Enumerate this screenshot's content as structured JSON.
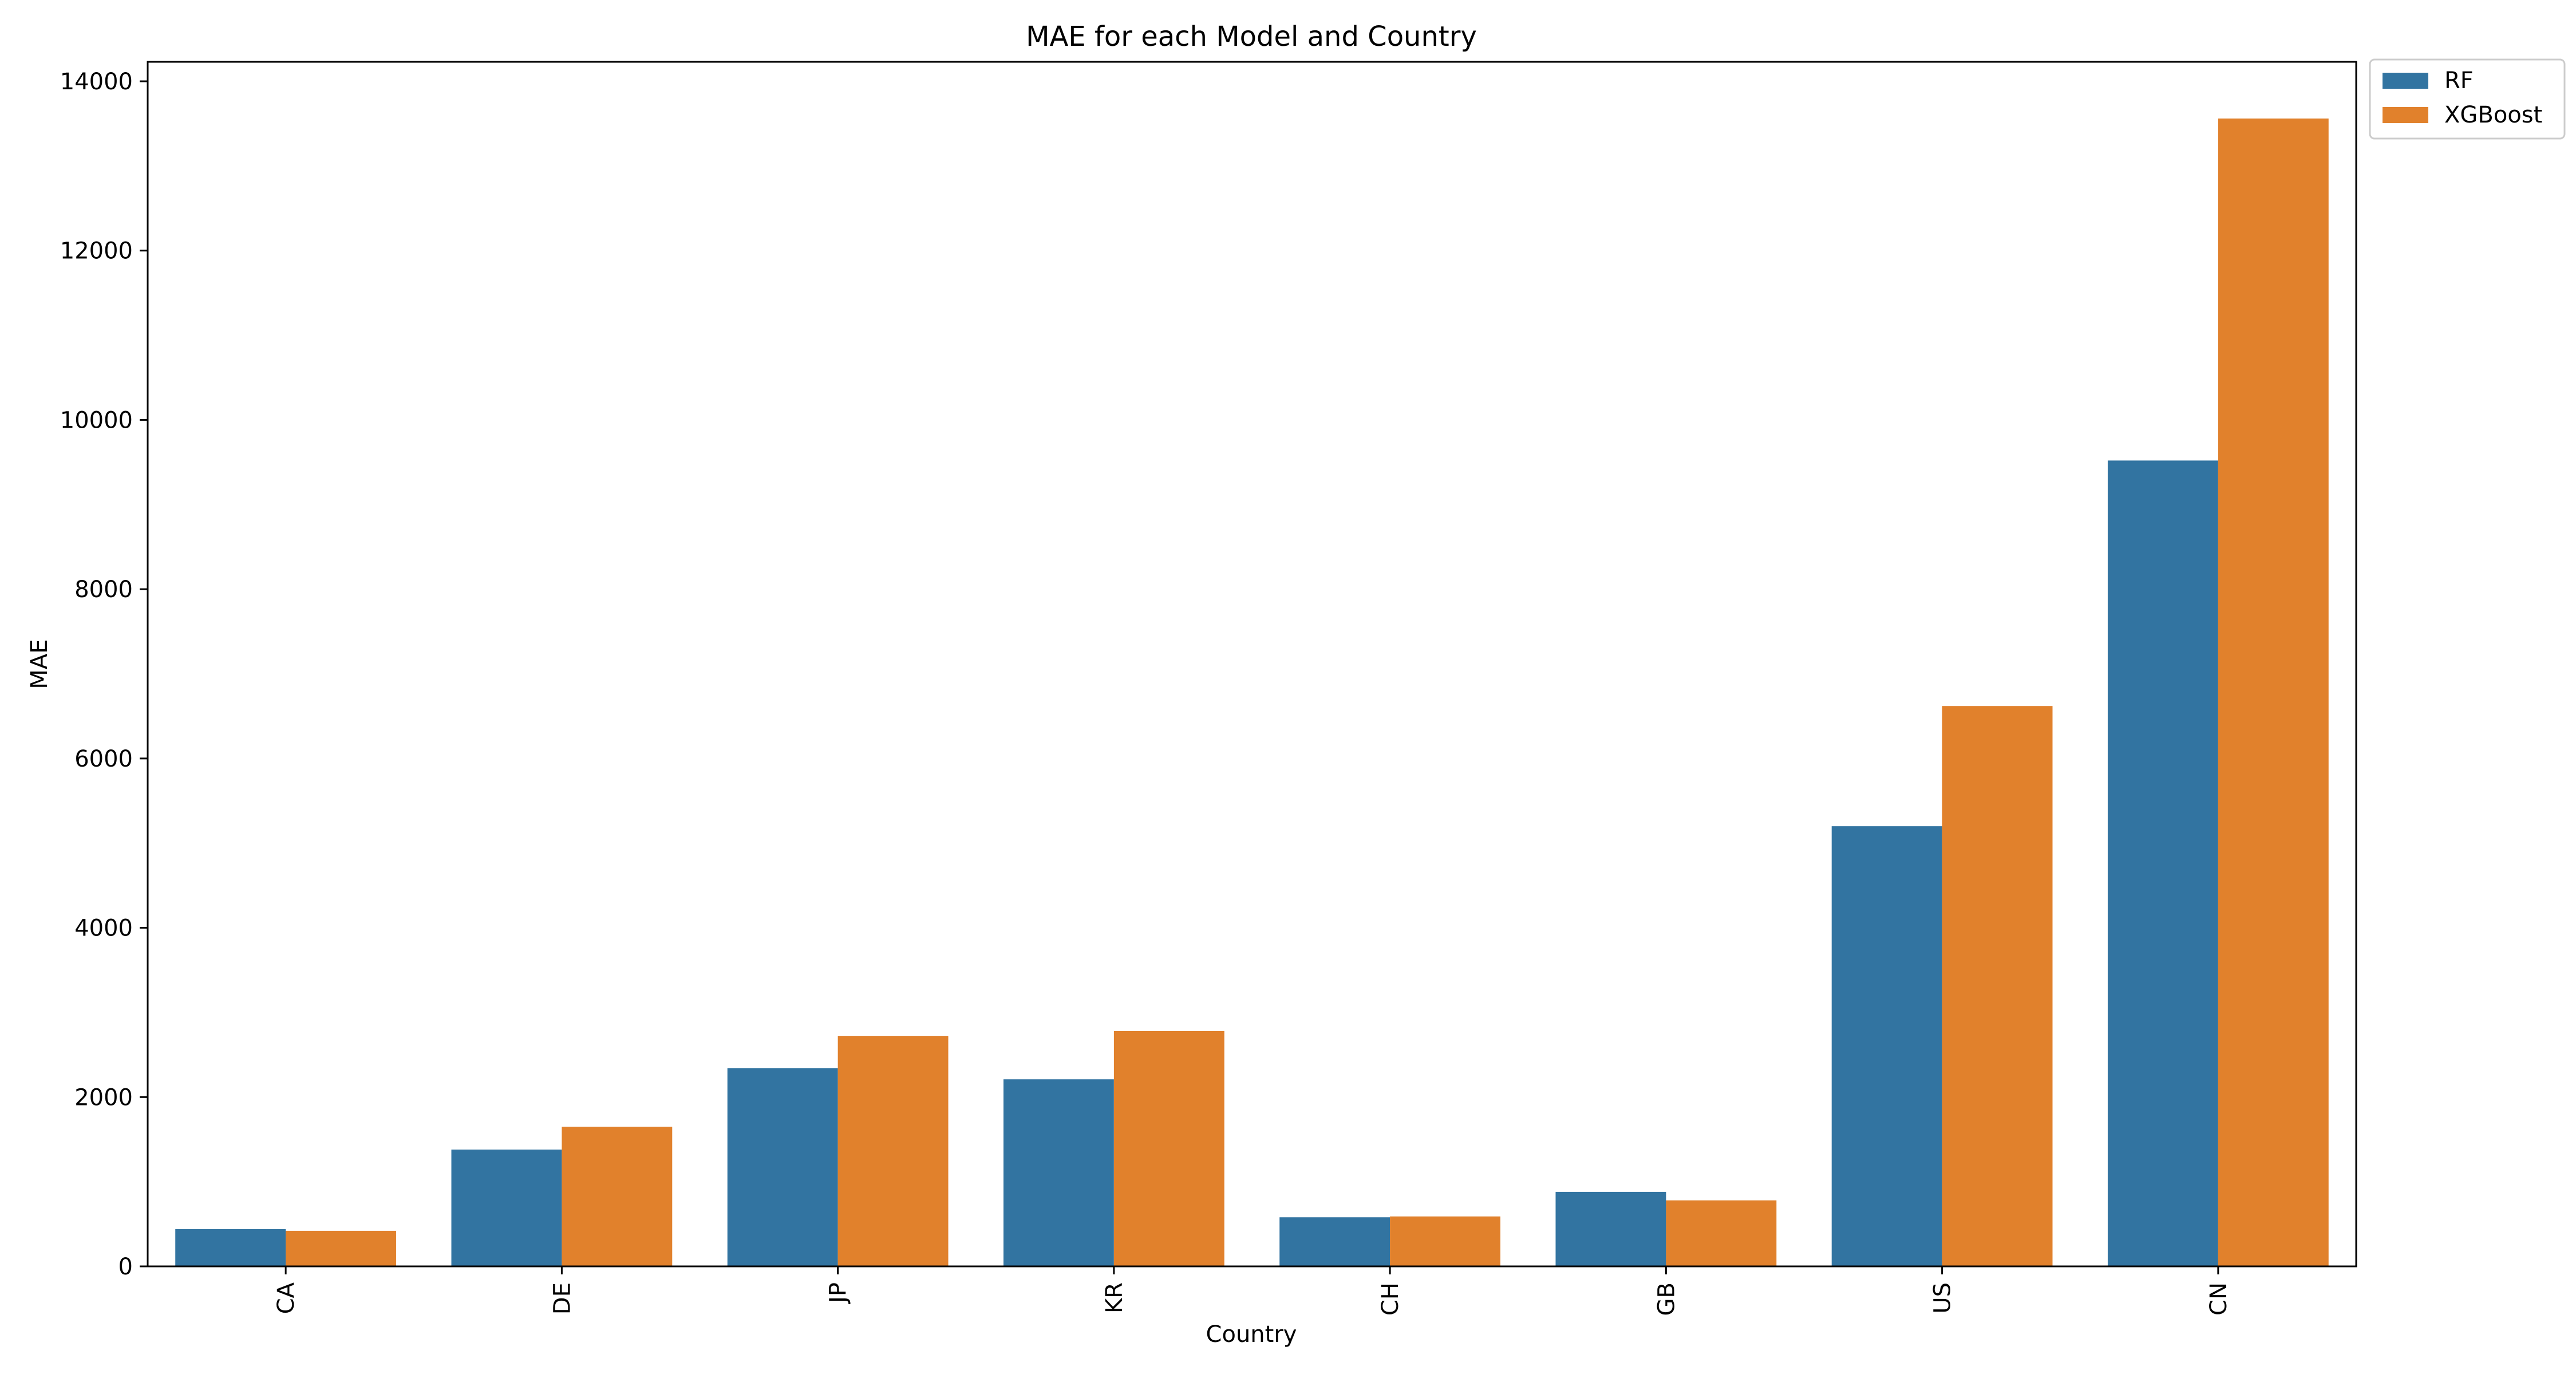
{
  "chart_data": {
    "type": "bar",
    "title": "MAE for each Model and Country",
    "xlabel": "Country",
    "ylabel": "MAE",
    "categories": [
      "CA",
      "DE",
      "JP",
      "KR",
      "CH",
      "GB",
      "US",
      "CN"
    ],
    "series": [
      {
        "name": "RF",
        "color": "#3274a1",
        "values": [
          440,
          1380,
          2340,
          2210,
          580,
          880,
          5200,
          9520
        ]
      },
      {
        "name": "XGBoost",
        "color": "#e1812c",
        "values": [
          420,
          1650,
          2720,
          2780,
          590,
          780,
          6620,
          13560
        ]
      }
    ],
    "ylim": [
      0,
      14230
    ],
    "yticks": [
      0,
      2000,
      4000,
      6000,
      8000,
      10000,
      12000,
      14000
    ],
    "grid": false,
    "legend_position": "outside-top-right",
    "xtick_rotation": "vertical"
  }
}
